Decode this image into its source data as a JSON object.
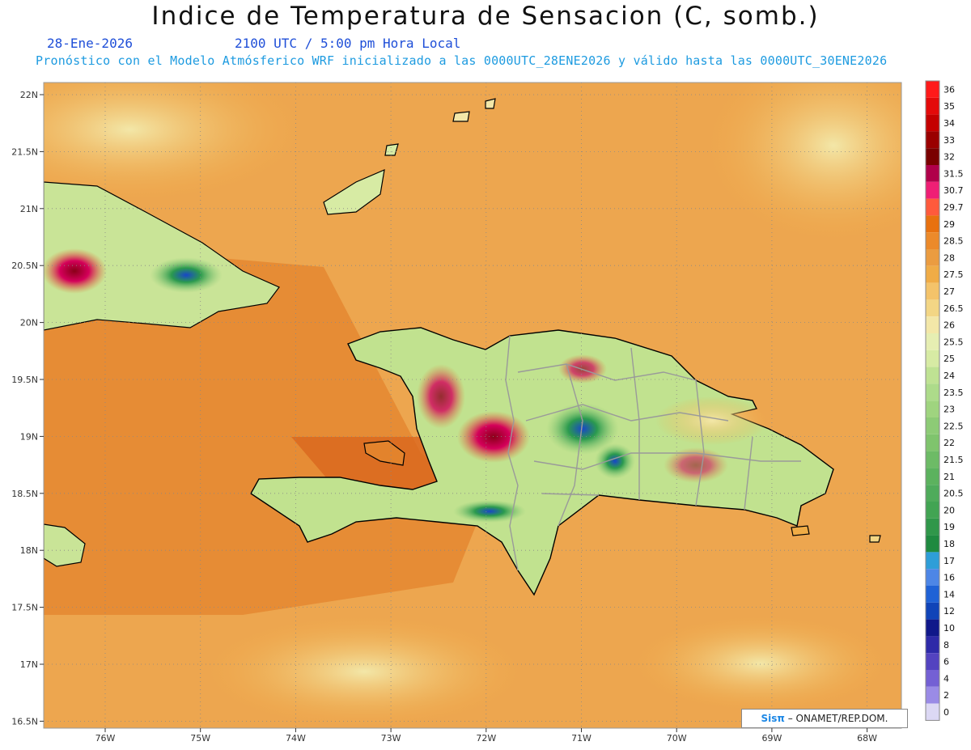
{
  "title": "Indice de Temperatura de Sensacion (C, somb.)",
  "date": "28-Ene-2026",
  "time": "2100 UTC / 5:00 pm Hora Local",
  "model_info": "Pronóstico con el Modelo Atmósferico WRF inicializado a las 0000UTC_28ENE2026 y válido hasta las  0000UTC_30ENE2026",
  "credit": {
    "brand": "Sisπ",
    "text": " – ONAMET/REP.DOM."
  },
  "map": {
    "lat_ticks": [
      "22N",
      "21.5N",
      "21N",
      "20.5N",
      "20N",
      "19.5N",
      "19N",
      "18.5N",
      "18N",
      "17.5N",
      "17N",
      "16.5N"
    ],
    "lon_ticks": [
      "76W",
      "75W",
      "74W",
      "73W",
      "72W",
      "71W",
      "70W",
      "69W",
      "68W"
    ],
    "ocean_color": "#e9a24e",
    "grid": true
  },
  "legend": {
    "units": "C",
    "labels": [
      "36",
      "35",
      "34",
      "33",
      "32",
      "31.5",
      "30.7",
      "29.7",
      "29",
      "28.5",
      "28",
      "27.5",
      "27",
      "26.5",
      "26",
      "25.5",
      "25",
      "24",
      "23.5",
      "23",
      "22.5",
      "22",
      "21.5",
      "21",
      "20.5",
      "20",
      "19",
      "18",
      "17",
      "16",
      "14",
      "12",
      "10",
      "8",
      "6",
      "4",
      "2",
      "0"
    ],
    "colors": [
      "#ff1a1a",
      "#e40a0a",
      "#c40000",
      "#9a0000",
      "#7a0000",
      "#b0004a",
      "#ef1f75",
      "#ff5a3c",
      "#e8710f",
      "#ec8a2a",
      "#eb9c40",
      "#f0ac46",
      "#f4c36a",
      "#f3d685",
      "#f3e7a8",
      "#e6eeb2",
      "#d7eba4",
      "#bfe293",
      "#addb8a",
      "#9fd47f",
      "#8dcb76",
      "#7fc46d",
      "#6dbb66",
      "#5cb25e",
      "#4fab5b",
      "#42a453",
      "#30974a",
      "#1f8a40",
      "#2e9ed8",
      "#4d86e6",
      "#1f62d6",
      "#1044b8",
      "#10188a",
      "#2e2aa8",
      "#5343c0",
      "#7460d4",
      "#9a8be6",
      "#dcd8f4"
    ]
  }
}
